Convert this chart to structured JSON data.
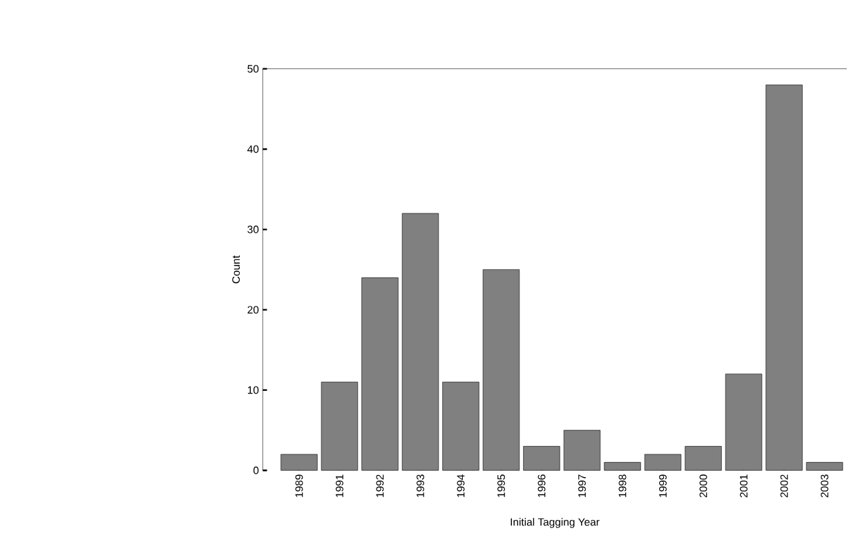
{
  "chart_data": {
    "type": "bar",
    "xlabel": "Initial Tagging Year",
    "ylabel": "Count",
    "categories": [
      "1989",
      "1991",
      "1992",
      "1993",
      "1994",
      "1995",
      "1996",
      "1997",
      "1998",
      "1999",
      "2000",
      "2001",
      "2002",
      "2003"
    ],
    "values": [
      2,
      11,
      24,
      32,
      11,
      25,
      3,
      5,
      1,
      2,
      3,
      12,
      48,
      1
    ],
    "color": "#808080",
    "ylim": [
      0,
      50
    ],
    "yticks": [
      0,
      10,
      20,
      30,
      40,
      50
    ]
  }
}
